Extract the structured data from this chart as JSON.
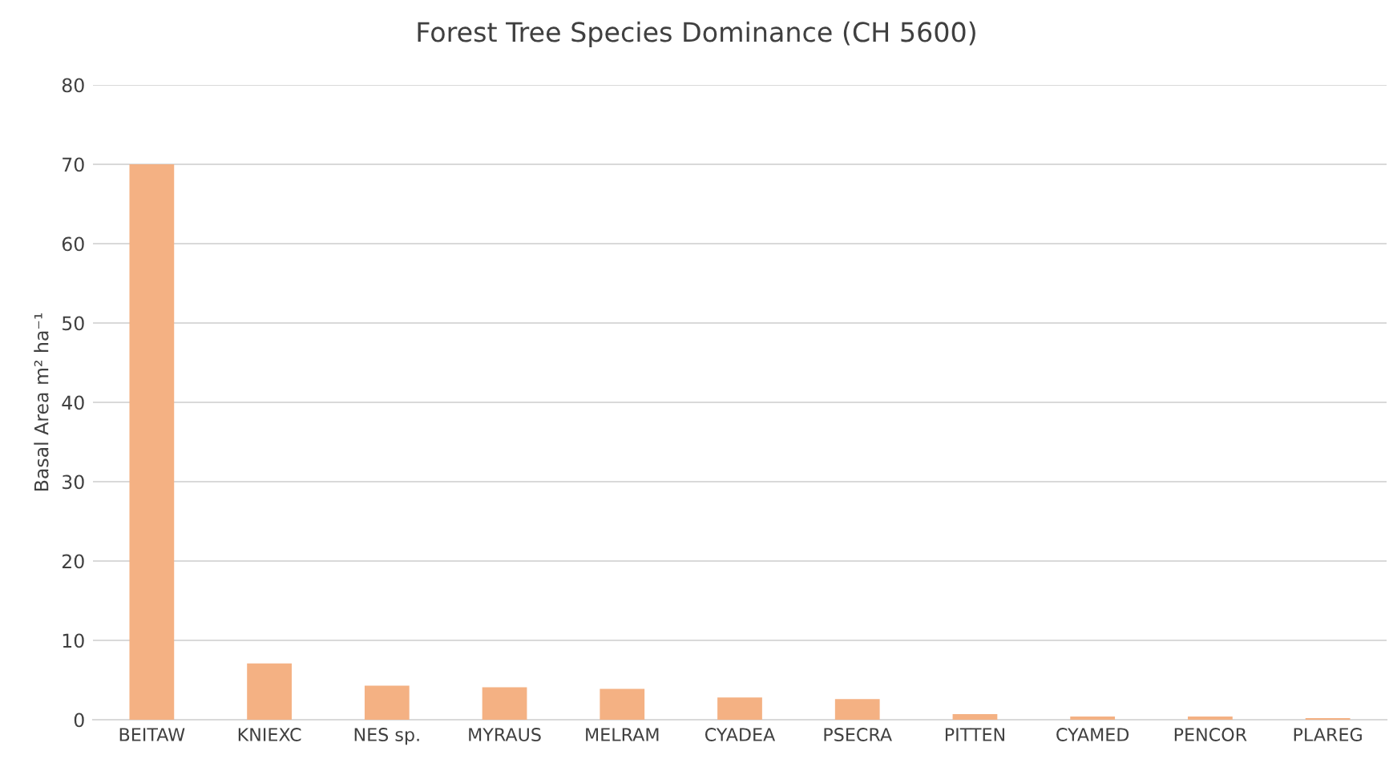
{
  "chart_data": {
    "type": "bar",
    "title": "Forest Tree Species Dominance (CH 5600)",
    "ylabel": "Basal Area m² ha⁻¹",
    "categories": [
      "BEITAW",
      "KNIEXC",
      "NES sp.",
      "MYRAUS",
      "MELRAM",
      "CYADEA",
      "PSECRA",
      "PITTEN",
      "CYAMED",
      "PENCOR",
      "PLAREG"
    ],
    "values": [
      70,
      7.1,
      4.3,
      4.1,
      3.9,
      2.8,
      2.6,
      0.7,
      0.4,
      0.4,
      0.2
    ],
    "color": "#f4b183",
    "ylim": [
      0,
      80
    ],
    "yticks": [
      0,
      10,
      20,
      30,
      40,
      50,
      60,
      70,
      80
    ],
    "grid": "y",
    "legend": false
  }
}
